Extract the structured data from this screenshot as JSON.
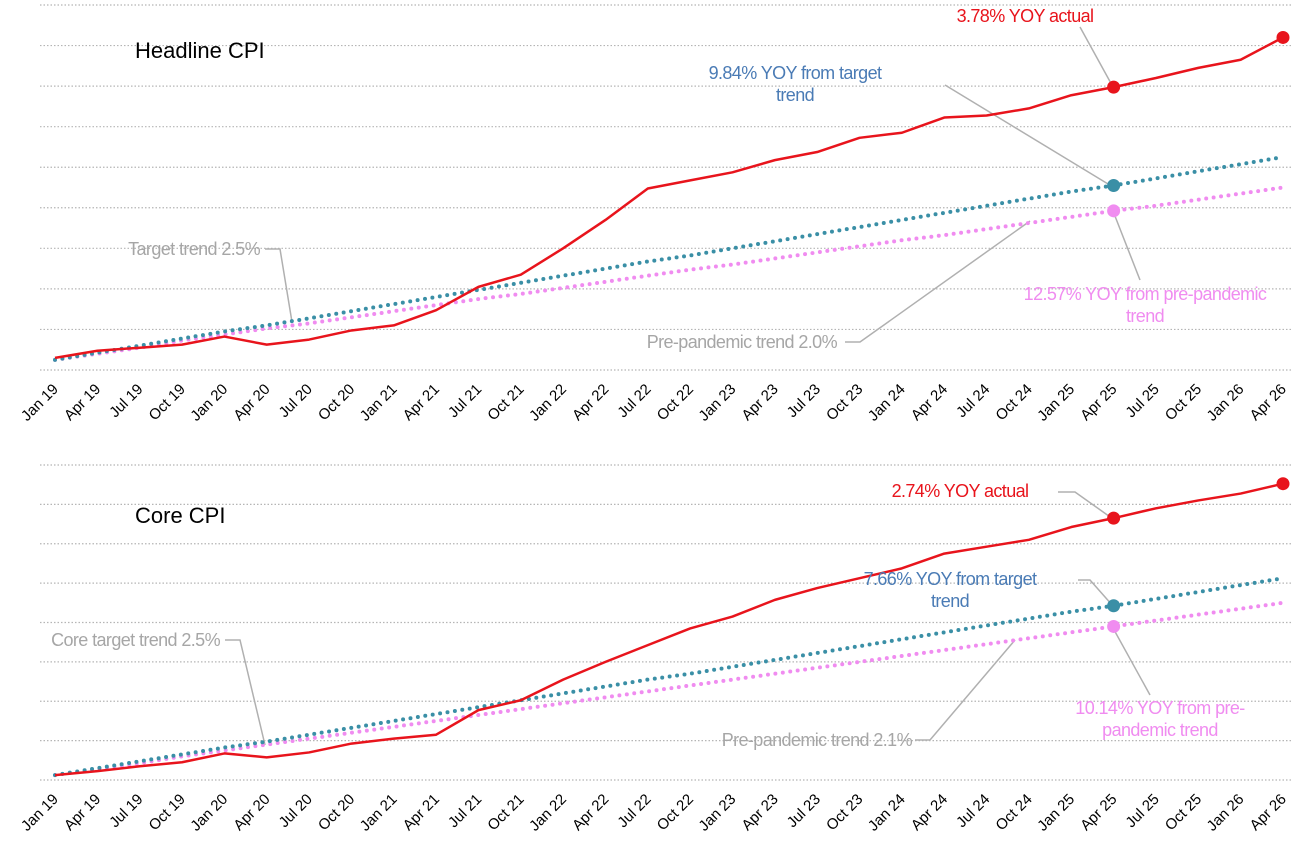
{
  "chart_data": [
    {
      "type": "line",
      "title": "Headline CPI",
      "categories": [
        "Jan 19",
        "Apr 19",
        "Jul 19",
        "Oct 19",
        "Jan 20",
        "Apr 20",
        "Jul 20",
        "Oct 20",
        "Jan 21",
        "Apr 21",
        "Jul 21",
        "Oct 21",
        "Jan 22",
        "Apr 22",
        "Jul 22",
        "Oct 22",
        "Jan 23",
        "Apr 23",
        "Jul 23",
        "Oct 23",
        "Jan 24",
        "Apr 24",
        "Jul 24",
        "Oct 24",
        "Jan 25",
        "Apr 25",
        "Jul 25",
        "Oct 25",
        "Jan 26",
        "Apr 26"
      ],
      "series": [
        {
          "color": "#e8141c",
          "style": "solid",
          "markers": [
            25,
            29
          ],
          "values": [
            100.2,
            100.9,
            101.2,
            101.5,
            102.3,
            101.5,
            102.0,
            102.9,
            103.4,
            104.9,
            107.2,
            108.4,
            111.0,
            113.8,
            116.9,
            117.7,
            118.5,
            119.7,
            120.5,
            121.9,
            122.4,
            123.9,
            124.1,
            124.8,
            126.1,
            126.9,
            127.8,
            128.8,
            129.6,
            131.8
          ]
        },
        {
          "color": "#3a8fa6",
          "style": "dotted",
          "markers": [
            25
          ],
          "values": [
            100.0,
            100.7,
            101.4,
            102.1,
            102.8,
            103.4,
            104.1,
            104.8,
            105.5,
            106.2,
            106.9,
            107.6,
            108.3,
            109.0,
            109.7,
            110.3,
            111.0,
            111.7,
            112.4,
            113.1,
            113.8,
            114.5,
            115.2,
            115.9,
            116.6,
            117.2,
            117.9,
            118.6,
            119.3,
            120.0
          ]
        },
        {
          "color": "#f08cf0",
          "style": "dotted",
          "markers": [
            25
          ],
          "values": [
            100.0,
            100.6,
            101.2,
            101.9,
            102.5,
            103.1,
            103.6,
            104.2,
            104.8,
            105.4,
            106.0,
            106.5,
            107.1,
            107.7,
            108.3,
            108.9,
            109.4,
            110.0,
            110.6,
            111.2,
            111.8,
            112.3,
            112.9,
            113.5,
            114.1,
            114.7,
            115.2,
            115.8,
            116.4,
            117.0
          ]
        }
      ],
      "annotations": [
        {
          "text": "3.78% YOY actual",
          "color": "#e8141c"
        },
        {
          "text": "9.84% YOY from target trend",
          "color": "#4a7bb5"
        },
        {
          "text": "12.57% YOY from pre-pandemic trend",
          "color": "#f08cf0"
        },
        {
          "text": "Target trend 2.5%",
          "color": "#a6a6a6"
        },
        {
          "text": "Pre-pandemic trend 2.0%",
          "color": "#a6a6a6"
        }
      ],
      "ylim": [
        99,
        135
      ],
      "yticks": [
        99,
        103,
        107,
        111,
        115,
        119,
        123,
        127,
        131,
        135
      ],
      "grid": true,
      "ytick_labels": false
    },
    {
      "type": "line",
      "title": "Core CPI",
      "categories": [
        "Jan 19",
        "Apr 19",
        "Jul 19",
        "Oct 19",
        "Jan 20",
        "Apr 20",
        "Jul 20",
        "Oct 20",
        "Jan 21",
        "Apr 21",
        "Jul 21",
        "Oct 21",
        "Jan 22",
        "Apr 22",
        "Jul 22",
        "Oct 22",
        "Jan 23",
        "Apr 23",
        "Jul 23",
        "Oct 23",
        "Jan 24",
        "Apr 24",
        "Jul 24",
        "Oct 24",
        "Jan 25",
        "Apr 25",
        "Jul 25",
        "Oct 25",
        "Jan 26",
        "Apr 26"
      ],
      "series": [
        {
          "color": "#e8141c",
          "style": "solid",
          "markers": [
            25,
            29
          ],
          "values": [
            100.0,
            100.4,
            100.9,
            101.3,
            102.2,
            101.8,
            102.3,
            103.2,
            103.7,
            104.1,
            106.6,
            107.6,
            109.7,
            111.5,
            113.2,
            114.9,
            116.1,
            117.8,
            119.0,
            120.0,
            121.0,
            122.5,
            123.2,
            123.9,
            125.2,
            126.1,
            127.1,
            127.9,
            128.6,
            129.6
          ]
        },
        {
          "color": "#3a8fa6",
          "style": "dotted",
          "markers": [
            25
          ],
          "values": [
            100.0,
            100.7,
            101.4,
            102.1,
            102.8,
            103.4,
            104.1,
            104.8,
            105.5,
            106.2,
            106.9,
            107.6,
            108.3,
            109.0,
            109.7,
            110.3,
            111.0,
            111.7,
            112.4,
            113.1,
            113.8,
            114.5,
            115.2,
            115.9,
            116.6,
            117.2,
            117.9,
            118.6,
            119.3,
            120.0
          ]
        },
        {
          "color": "#f08cf0",
          "style": "dotted",
          "markers": [
            25
          ],
          "values": [
            100.0,
            100.6,
            101.2,
            101.9,
            102.5,
            103.1,
            103.7,
            104.3,
            104.9,
            105.5,
            106.1,
            106.7,
            107.3,
            107.9,
            108.5,
            109.1,
            109.7,
            110.3,
            110.9,
            111.5,
            112.1,
            112.7,
            113.3,
            113.9,
            114.5,
            115.1,
            115.7,
            116.3,
            116.9,
            117.5
          ]
        }
      ],
      "annotations": [
        {
          "text": "2.74% YOY actual",
          "color": "#e8141c"
        },
        {
          "text": "7.66% YOY from target trend",
          "color": "#4a7bb5"
        },
        {
          "text": "10.14% YOY from pre-pandemic trend",
          "color": "#f08cf0"
        },
        {
          "text": "Core target trend 2.5%",
          "color": "#a6a6a6"
        },
        {
          "text": "Pre-pandemic trend 2.1%",
          "color": "#a6a6a6"
        }
      ],
      "ylim": [
        99.5,
        131.5
      ],
      "yticks": [
        99.5,
        103.5,
        107.5,
        111.5,
        115.5,
        119.5,
        123.5,
        127.5,
        131.5
      ],
      "grid": true,
      "ytick_labels": false
    }
  ]
}
